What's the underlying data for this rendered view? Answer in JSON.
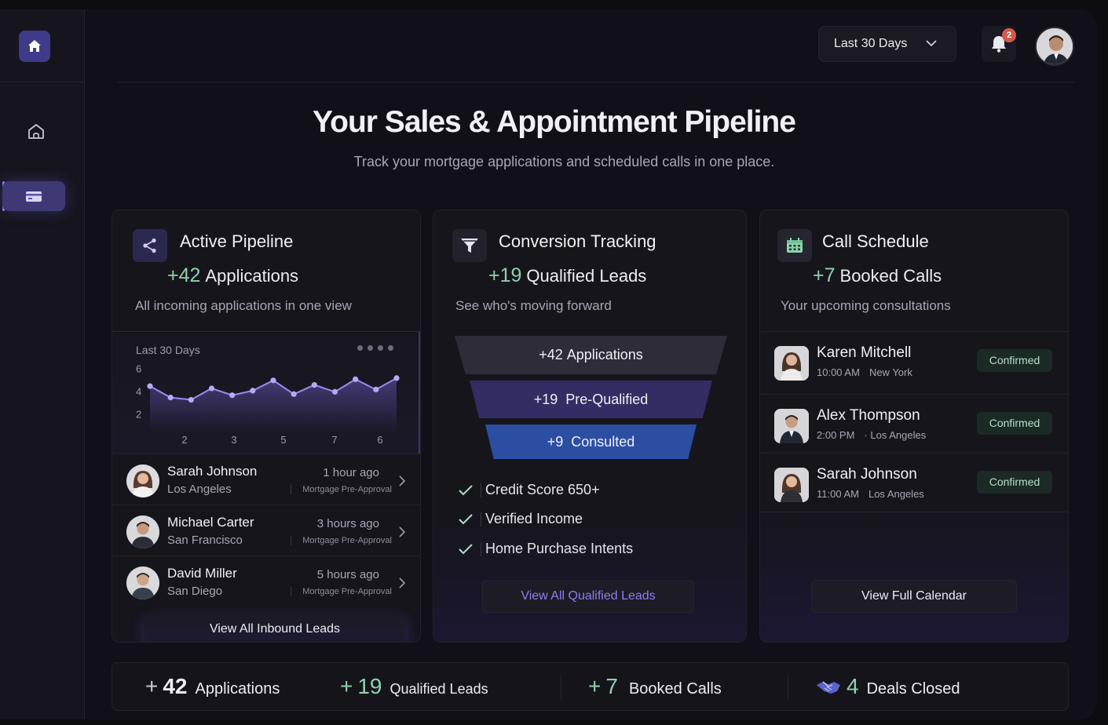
{
  "header": {
    "range_label": "Last 30 Days",
    "notification_count": "2"
  },
  "hero": {
    "title": "Your Sales & Appointment Pipeline",
    "subtitle": "Track your mortgage applications and scheduled calls in one place."
  },
  "pipeline": {
    "title": "Active Pipeline",
    "stat_value": "+42",
    "stat_label": "Applications",
    "description": "All incoming applications in one view",
    "chart_label": "Last 30 Days",
    "leads": [
      {
        "name": "Sarah Johnson",
        "city": "Los Angeles",
        "time": "1 hour ago",
        "type": "Mortgage Pre-Approval"
      },
      {
        "name": "Michael Carter",
        "city": "San Francisco",
        "time": "3 hours ago",
        "type": "Mortgage Pre-Approval"
      },
      {
        "name": "David Miller",
        "city": "San Diego",
        "time": "5 hours ago",
        "type": "Mortgage Pre-Approval"
      }
    ],
    "view_all": "View All Inbound Leads"
  },
  "chart_data": {
    "type": "line",
    "title": "Last 30 Days",
    "x_ticks": [
      "2",
      "3",
      "5",
      "7",
      "6"
    ],
    "y_ticks": [
      "6",
      "4",
      "2"
    ],
    "ylim": [
      1,
      6.5
    ],
    "values": [
      4.5,
      3.5,
      3.3,
      4.3,
      3.7,
      4.1,
      5.0,
      3.8,
      4.6,
      4.0,
      5.1,
      4.2,
      5.2
    ],
    "grid": false
  },
  "conversion": {
    "title": "Conversion Tracking",
    "stat_value": "+19",
    "stat_label": "Qualified Leads",
    "description": "See who's moving forward",
    "funnel": [
      {
        "value": "+42",
        "label": "Applications"
      },
      {
        "value": "+19",
        "label": "Pre-Qualified"
      },
      {
        "value": "+9",
        "label": "Consulted"
      }
    ],
    "criteria": [
      "Credit Score 650+",
      "Verified Income",
      "Home Purchase Intents"
    ],
    "view_all": "View All Qualified Leads"
  },
  "calls": {
    "title": "Call Schedule",
    "stat_value": "+7",
    "stat_label": "Booked Calls",
    "description": "Your upcoming consultations",
    "items": [
      {
        "name": "Karen Mitchell",
        "time": "10:00 AM",
        "city": "New York",
        "status": "Confirmed"
      },
      {
        "name": "Alex Thompson",
        "time": "2:00 PM",
        "city": "· Los Angeles",
        "status": "Confirmed"
      },
      {
        "name": "Sarah Johnson",
        "time": "11:00 AM",
        "city": "Los Angeles",
        "status": "Confirmed"
      }
    ],
    "view_all": "View Full Calendar"
  },
  "summary": {
    "applications": {
      "prefix": "+",
      "value": "42",
      "label": "Applications"
    },
    "qualified": {
      "prefix": "+",
      "value": "19",
      "label": "Qualified Leads"
    },
    "booked": {
      "prefix": "+",
      "value": "7",
      "label": "Booked Calls"
    },
    "deals": {
      "value": "4",
      "label": "Deals Closed"
    }
  },
  "colors": {
    "accent": "#8d7df0",
    "positive": "#8fd1ad",
    "funnel_top": "#2e2c38",
    "funnel_mid": "#332d63",
    "funnel_bottom": "#2b4ea3"
  }
}
